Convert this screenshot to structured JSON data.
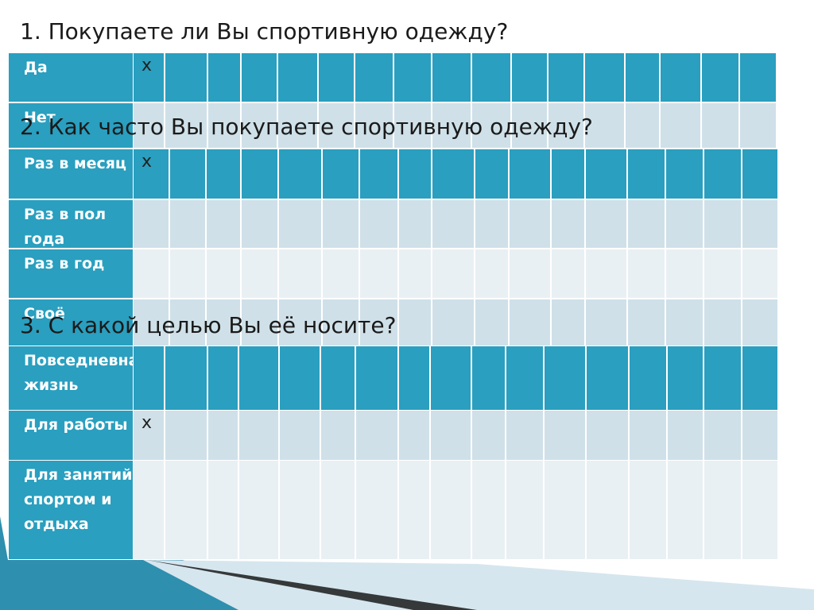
{
  "colors": {
    "header_row": "#2a9fbf",
    "label_cell": "#2a9fbf",
    "row_even": "#cfe0e8",
    "row_odd": "#e9f0f4",
    "text": "#1a1a1a",
    "label_text": "#ffffff"
  },
  "q1": {
    "title": "1. Покупаете ли Вы спортивную одежду?",
    "rows": [
      {
        "label": "Да",
        "style": "header",
        "marks": [
          "x"
        ]
      },
      {
        "label": "Нет",
        "style": "even",
        "marks": []
      }
    ]
  },
  "q2": {
    "title": "2. Как часто Вы покупаете спортивную одежду?",
    "rows": [
      {
        "label": "Раз в месяц",
        "style": "header",
        "marks": [
          "x"
        ]
      },
      {
        "label": "Раз в пол года",
        "style": "even",
        "marks": []
      },
      {
        "label": "Раз в год",
        "style": "odd",
        "marks": []
      },
      {
        "label": "Своё",
        "style": "even",
        "marks": []
      }
    ]
  },
  "q3": {
    "title": "3. С какой целью Вы её носите?",
    "rows": [
      {
        "label": "Повседневная жизнь",
        "style": "header",
        "marks": []
      },
      {
        "label": "Для работы",
        "style": "even",
        "marks": [
          "x"
        ]
      },
      {
        "label": "Для занятий спортом и отдыха",
        "style": "odd",
        "marks": []
      }
    ]
  }
}
